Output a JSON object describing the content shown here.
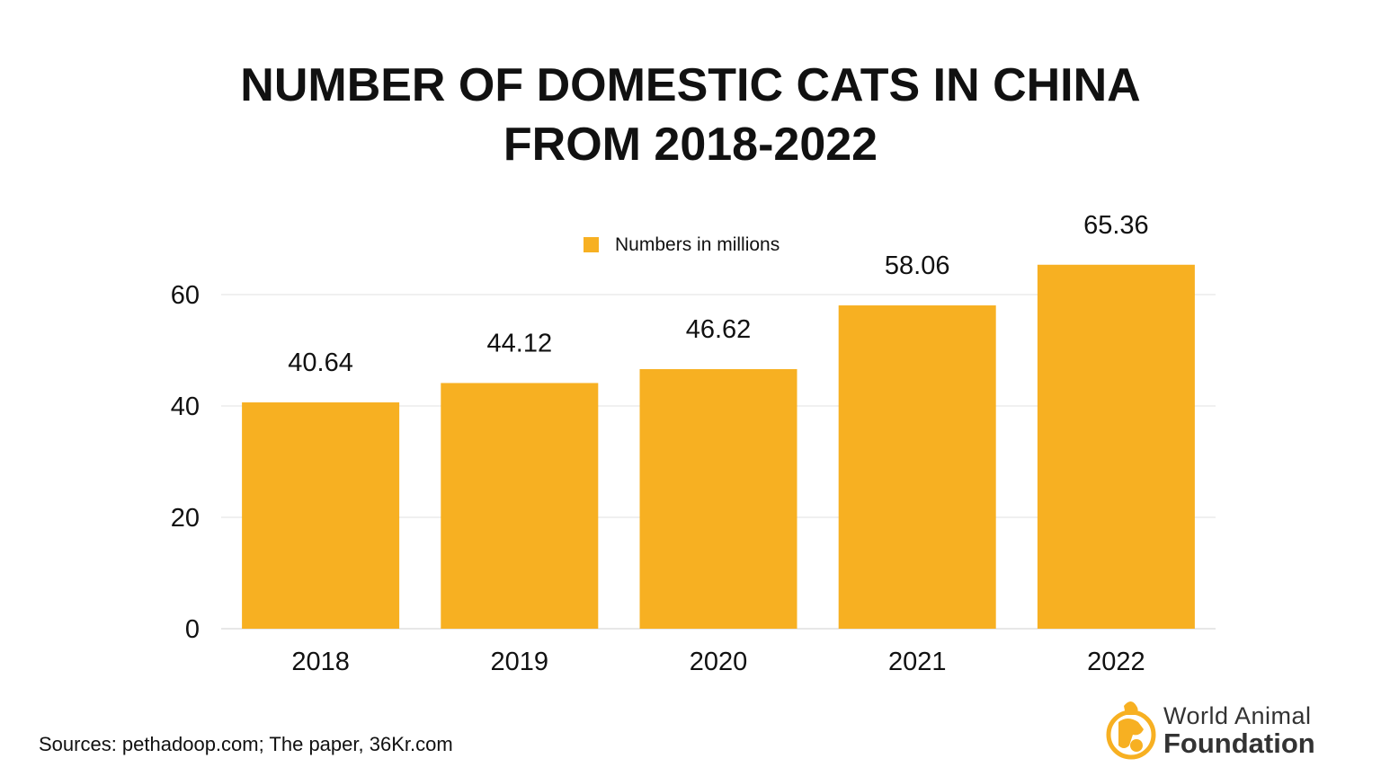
{
  "chart_data": {
    "type": "bar",
    "title": "NUMBER OF DOMESTIC CATS IN CHINA FROM 2018-2022",
    "title_lines": [
      "NUMBER OF DOMESTIC CATS IN CHINA",
      "FROM 2018-2022"
    ],
    "categories": [
      "2018",
      "2019",
      "2020",
      "2021",
      "2022"
    ],
    "series": [
      {
        "name": "Numbers in millions",
        "values": [
          40.64,
          44.12,
          46.62,
          58.06,
          65.36
        ],
        "color": "#F7B022"
      }
    ],
    "data_labels": [
      "40.64",
      "44.12",
      "46.62",
      "58.06",
      "65.36"
    ],
    "y_ticks": [
      0,
      20,
      40,
      60
    ],
    "ylim": [
      0,
      70
    ],
    "xlabel": "",
    "ylabel": "",
    "grid": true,
    "legend_position": "top"
  },
  "source": "Sources: pethadoop.com; The paper, 36Kr.com",
  "logo": {
    "line1": "World Animal",
    "line2": "Foundation",
    "color": "#F7B022"
  }
}
